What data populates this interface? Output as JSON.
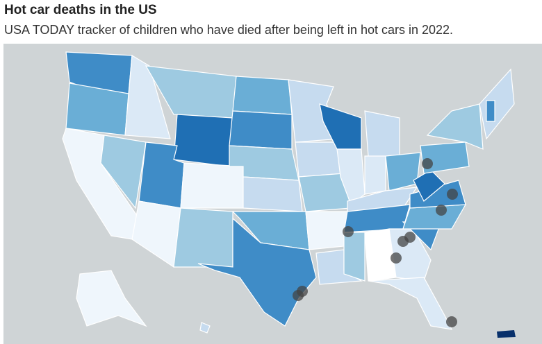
{
  "header": {
    "title": "Hot car deaths in the US",
    "subtitle": "USA TODAY tracker of children who have died after being left in hot cars in 2022."
  }
}
